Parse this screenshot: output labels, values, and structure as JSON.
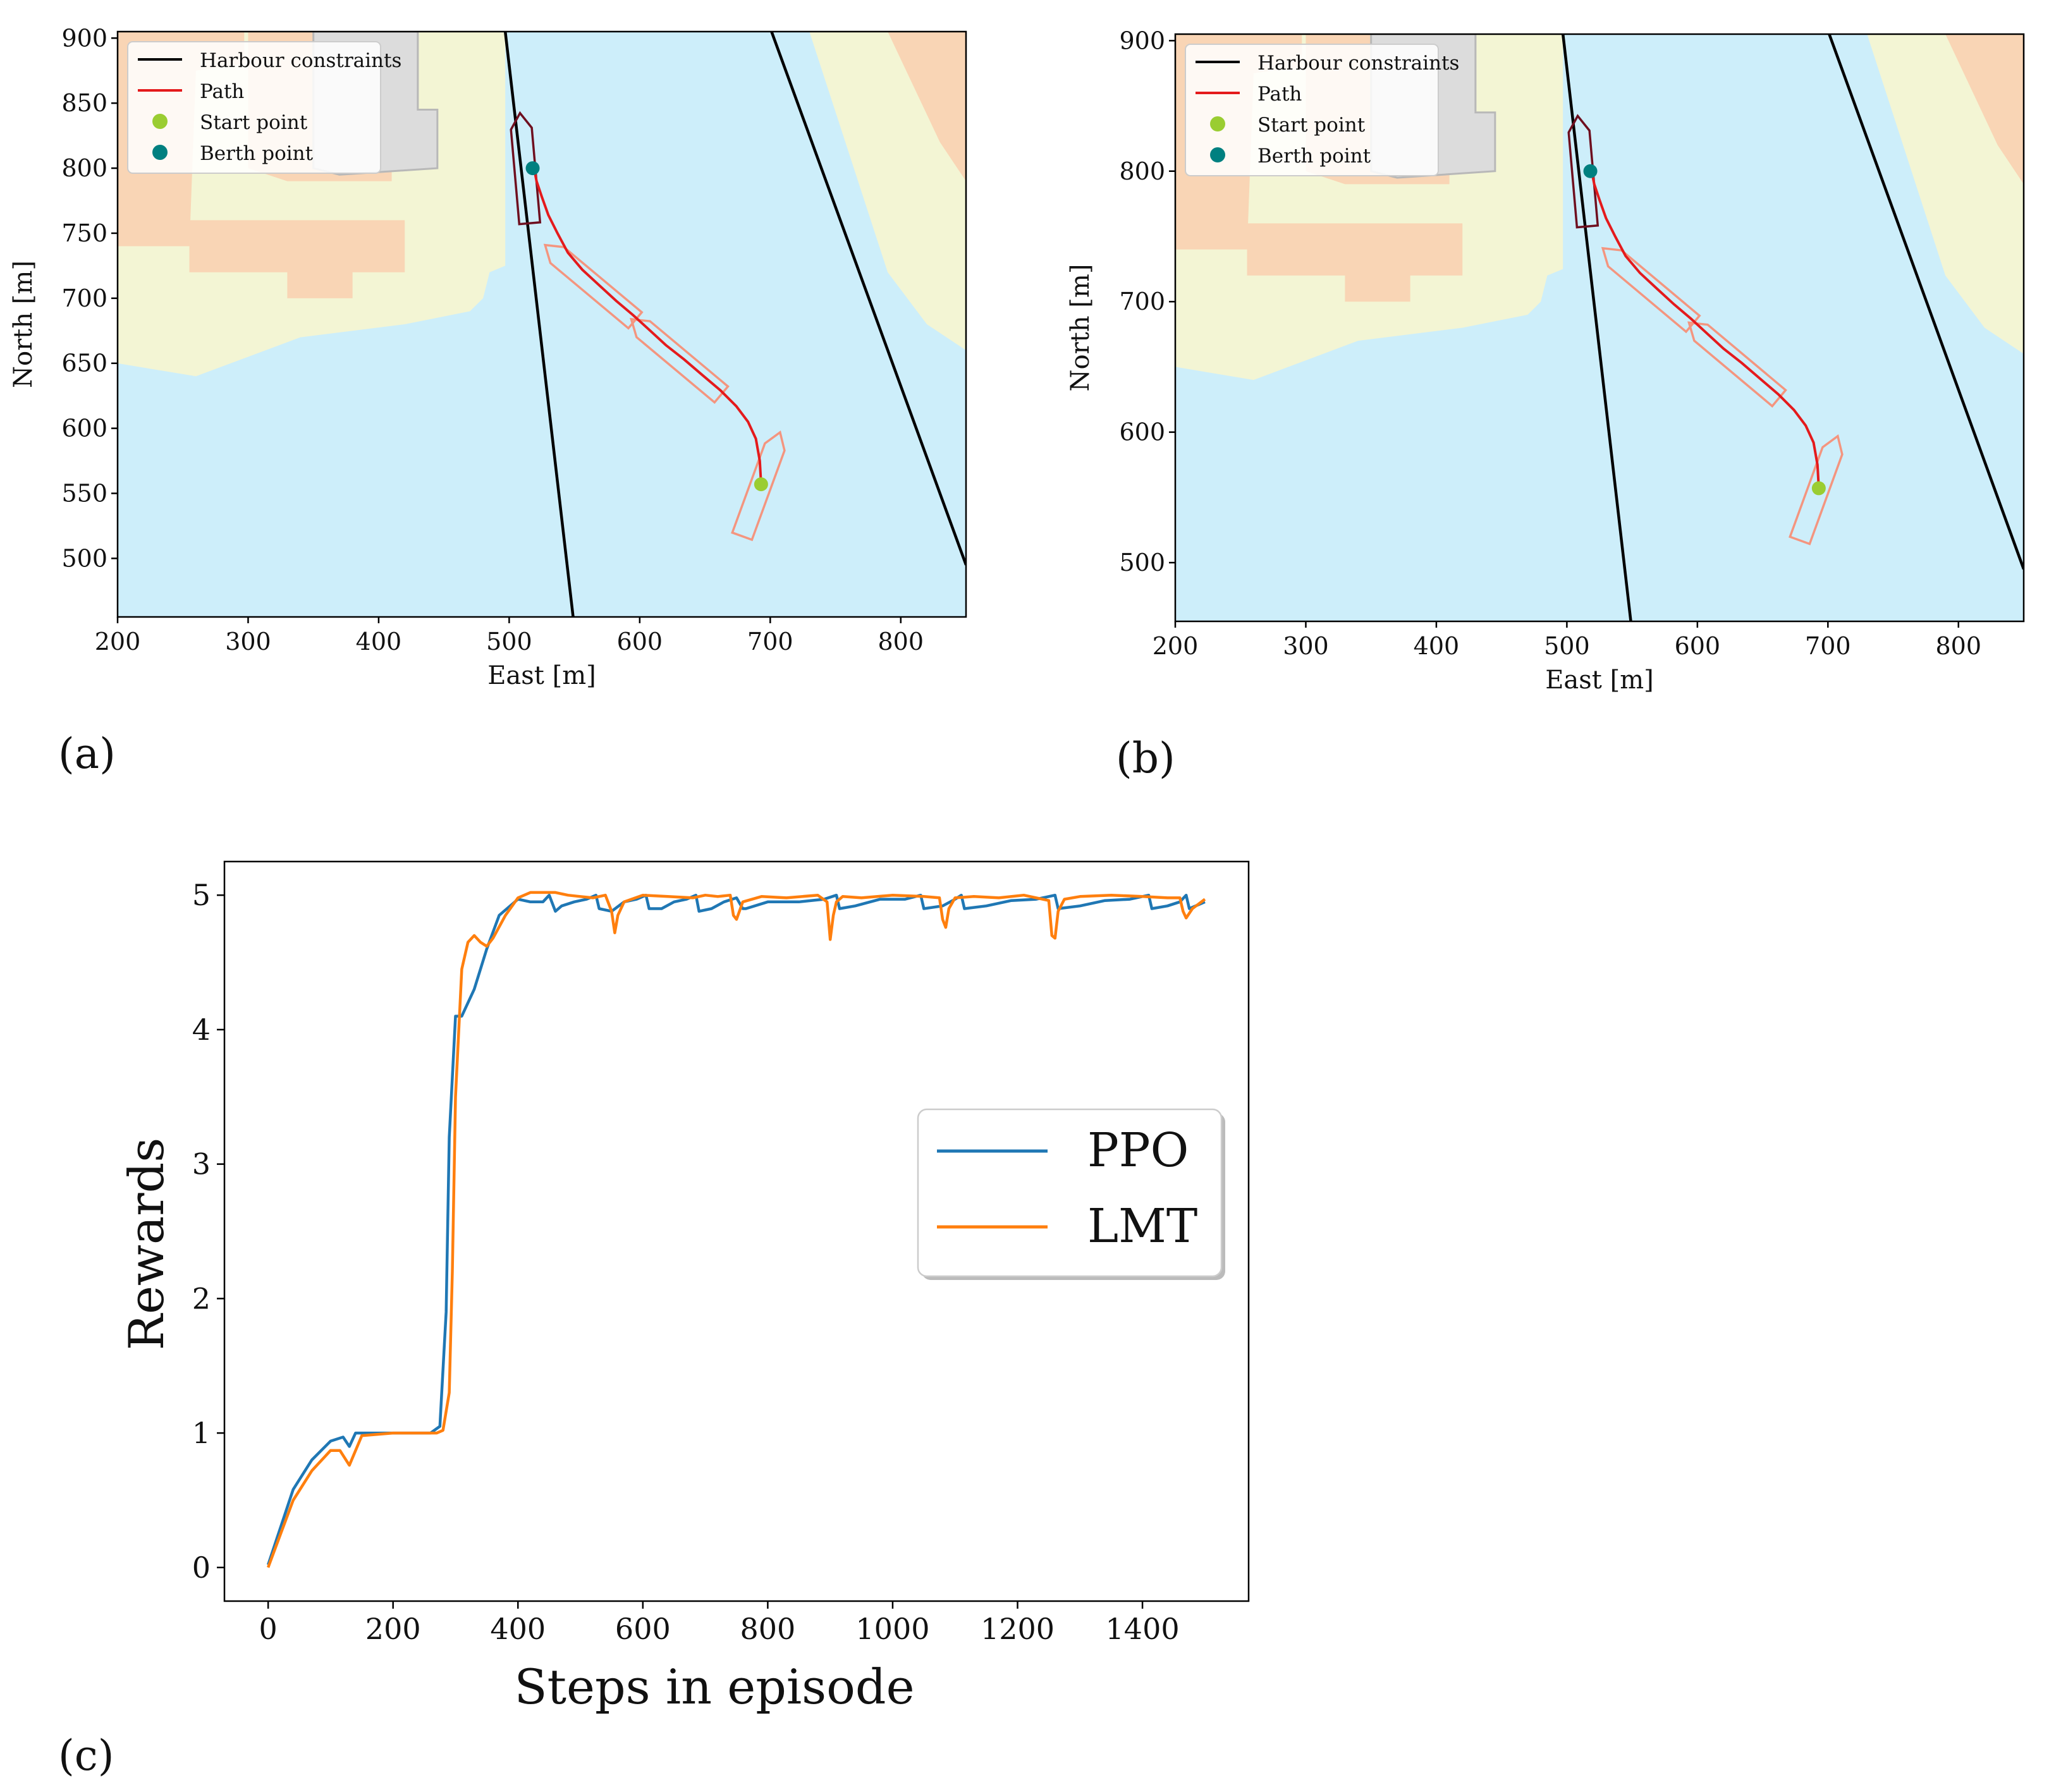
{
  "panels": [
    {
      "id": "a",
      "label": "(a)"
    },
    {
      "id": "b",
      "label": "(b)"
    },
    {
      "id": "c",
      "label": "(c)"
    }
  ],
  "chart_data": [
    {
      "type": "line",
      "panel": "(a)",
      "title": "",
      "xlabel": "East [m]",
      "ylabel": "North [m]",
      "xlim": [
        200,
        850
      ],
      "ylim": [
        455,
        905
      ],
      "xticks": [
        200,
        300,
        400,
        500,
        600,
        700,
        800
      ],
      "yticks": [
        500,
        550,
        600,
        650,
        700,
        750,
        800,
        850,
        900
      ],
      "legend": {
        "position": "top-left",
        "entries": [
          "Harbour constraints",
          "Path",
          "Start point",
          "Berth point"
        ]
      },
      "series": [
        {
          "name": "Harbour constraints",
          "color": "#000000",
          "lines": [
            [
              [
                497,
                905
              ],
              [
                549,
                455
              ]
            ],
            [
              [
                701,
                905
              ],
              [
                850,
                495
              ]
            ]
          ]
        },
        {
          "name": "Path",
          "color": "#e41a1c",
          "x": [
            693,
            692,
            689,
            683,
            674,
            662,
            648,
            634,
            620,
            607,
            595,
            582,
            569,
            556,
            545,
            537,
            530,
            525,
            521,
            519
          ],
          "y": [
            557,
            575,
            592,
            605,
            617,
            629,
            641,
            653,
            664,
            676,
            687,
            698,
            710,
            722,
            735,
            750,
            764,
            778,
            790,
            800
          ]
        }
      ],
      "points": [
        {
          "name": "Start point",
          "x": 693,
          "y": 557,
          "color": "#9acd32"
        },
        {
          "name": "Berth point",
          "x": 518,
          "y": 800,
          "color": "#008080"
        }
      ]
    },
    {
      "type": "line",
      "panel": "(b)",
      "title": "",
      "xlabel": "East [m]",
      "ylabel": "North [m]",
      "xlim": [
        200,
        850
      ],
      "ylim": [
        455,
        905
      ],
      "xticks": [
        200,
        300,
        400,
        500,
        600,
        700,
        800
      ],
      "yticks": [
        500,
        600,
        700,
        800,
        900
      ],
      "legend": {
        "position": "top-left",
        "entries": [
          "Harbour constraints",
          "Path",
          "Start point",
          "Berth point"
        ]
      },
      "series": [
        {
          "name": "Harbour constraints",
          "color": "#000000",
          "lines": [
            [
              [
                497,
                905
              ],
              [
                549,
                455
              ]
            ],
            [
              [
                701,
                905
              ],
              [
                850,
                495
              ]
            ]
          ]
        },
        {
          "name": "Path",
          "color": "#e41a1c",
          "x": [
            693,
            692,
            689,
            683,
            674,
            662,
            648,
            634,
            620,
            607,
            595,
            582,
            569,
            556,
            545,
            537,
            530,
            525,
            521,
            519
          ],
          "y": [
            557,
            575,
            592,
            605,
            617,
            629,
            641,
            653,
            664,
            676,
            687,
            698,
            710,
            722,
            735,
            750,
            764,
            778,
            790,
            800
          ]
        }
      ],
      "points": [
        {
          "name": "Start point",
          "x": 693,
          "y": 557,
          "color": "#9acd32"
        },
        {
          "name": "Berth point",
          "x": 518,
          "y": 800,
          "color": "#008080"
        }
      ]
    },
    {
      "type": "line",
      "panel": "(c)",
      "title": "",
      "xlabel": "Steps in episode",
      "ylabel": "Rewards",
      "xlim": [
        -70,
        1570
      ],
      "ylim": [
        -0.25,
        5.25
      ],
      "xticks": [
        0,
        200,
        400,
        600,
        800,
        1000,
        1200,
        1400
      ],
      "yticks": [
        0,
        1,
        2,
        3,
        4,
        5
      ],
      "legend": {
        "position": "center-right",
        "entries": [
          "PPO",
          "LMT"
        ]
      },
      "series": [
        {
          "name": "PPO",
          "color": "#1f77b4",
          "x": [
            0,
            20,
            40,
            70,
            100,
            120,
            130,
            140,
            200,
            260,
            275,
            285,
            290,
            300,
            310,
            330,
            350,
            370,
            400,
            420,
            440,
            450,
            460,
            470,
            490,
            510,
            525,
            530,
            550,
            570,
            590,
            605,
            610,
            630,
            650,
            670,
            685,
            690,
            710,
            730,
            750,
            760,
            765,
            800,
            850,
            890,
            910,
            915,
            940,
            980,
            1020,
            1045,
            1050,
            1080,
            1100,
            1110,
            1115,
            1150,
            1190,
            1230,
            1260,
            1265,
            1300,
            1340,
            1380,
            1410,
            1415,
            1440,
            1460,
            1470,
            1475,
            1500
          ],
          "y": [
            0.02,
            0.3,
            0.58,
            0.8,
            0.94,
            0.97,
            0.9,
            1.0,
            1.0,
            1.0,
            1.05,
            1.9,
            3.2,
            4.1,
            4.1,
            4.3,
            4.6,
            4.85,
            4.97,
            4.95,
            4.95,
            5.0,
            4.88,
            4.92,
            4.95,
            4.97,
            5.0,
            4.9,
            4.88,
            4.95,
            4.97,
            5.0,
            4.9,
            4.9,
            4.95,
            4.97,
            5.0,
            4.88,
            4.9,
            4.95,
            4.98,
            4.9,
            4.9,
            4.95,
            4.95,
            4.97,
            5.0,
            4.9,
            4.92,
            4.97,
            4.97,
            5.0,
            4.9,
            4.92,
            4.97,
            5.0,
            4.9,
            4.92,
            4.96,
            4.97,
            5.0,
            4.9,
            4.92,
            4.96,
            4.97,
            5.0,
            4.9,
            4.92,
            4.95,
            5.0,
            4.9,
            4.95
          ]
        },
        {
          "name": "LMT",
          "color": "#ff7f0e",
          "x": [
            0,
            20,
            40,
            70,
            100,
            115,
            130,
            150,
            200,
            270,
            280,
            290,
            295,
            300,
            310,
            320,
            330,
            340,
            350,
            360,
            380,
            400,
            420,
            440,
            460,
            480,
            500,
            520,
            540,
            550,
            555,
            560,
            570,
            600,
            640,
            680,
            700,
            720,
            740,
            745,
            750,
            760,
            790,
            830,
            880,
            895,
            900,
            905,
            910,
            920,
            950,
            1000,
            1050,
            1075,
            1080,
            1085,
            1090,
            1100,
            1130,
            1170,
            1210,
            1250,
            1255,
            1260,
            1265,
            1275,
            1300,
            1350,
            1400,
            1440,
            1460,
            1465,
            1470,
            1480,
            1500
          ],
          "y": [
            0.0,
            0.25,
            0.5,
            0.72,
            0.87,
            0.87,
            0.76,
            0.98,
            1.0,
            1.0,
            1.02,
            1.3,
            2.2,
            3.5,
            4.45,
            4.65,
            4.7,
            4.65,
            4.62,
            4.68,
            4.85,
            4.98,
            5.02,
            5.02,
            5.02,
            5.0,
            4.99,
            4.98,
            5.0,
            4.88,
            4.72,
            4.85,
            4.95,
            5.0,
            4.99,
            4.98,
            5.0,
            4.99,
            5.0,
            4.85,
            4.82,
            4.95,
            4.99,
            4.98,
            5.0,
            4.95,
            4.67,
            4.85,
            4.95,
            4.99,
            4.98,
            5.0,
            4.99,
            4.98,
            4.82,
            4.76,
            4.9,
            4.98,
            4.99,
            4.98,
            5.0,
            4.96,
            4.7,
            4.68,
            4.88,
            4.97,
            4.99,
            5.0,
            4.99,
            4.98,
            4.98,
            4.88,
            4.83,
            4.9,
            4.97
          ]
        }
      ]
    }
  ]
}
